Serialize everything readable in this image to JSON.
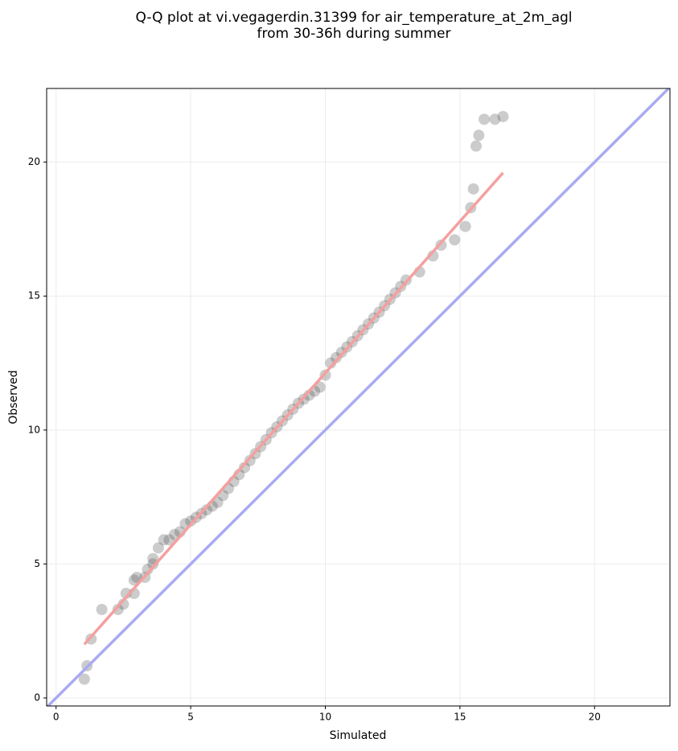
{
  "chart_data": {
    "type": "scatter",
    "title": [
      "Q-Q plot at vi.vegagerdin.31399 for air_temperature_at_2m_agl",
      "from 30-36h during summer"
    ],
    "xlabel": "Simulated",
    "ylabel": "Observed",
    "xlim": [
      -0.35,
      22.8
    ],
    "ylim": [
      -0.3,
      22.75
    ],
    "xticks": [
      0,
      5,
      10,
      15,
      20
    ],
    "yticks": [
      0,
      5,
      10,
      15,
      20
    ],
    "grid": true,
    "color": "#555555",
    "x": [
      1.05,
      1.15,
      1.3,
      1.7,
      2.3,
      2.5,
      2.6,
      2.9,
      2.9,
      3.0,
      3.3,
      3.4,
      3.6,
      3.6,
      3.8,
      4.0,
      4.2,
      4.4,
      4.6,
      4.8,
      5.0,
      5.2,
      5.4,
      5.6,
      5.8,
      6.0,
      6.2,
      6.4,
      6.6,
      6.8,
      7.0,
      7.2,
      7.4,
      7.6,
      7.8,
      8.0,
      8.2,
      8.4,
      8.6,
      8.8,
      9.0,
      9.2,
      9.4,
      9.6,
      9.8,
      10.0,
      10.2,
      10.4,
      10.6,
      10.8,
      11.0,
      11.2,
      11.4,
      11.6,
      11.8,
      12.0,
      12.2,
      12.4,
      12.6,
      12.8,
      13.0,
      13.5,
      14.0,
      14.3,
      14.8,
      15.2,
      15.4,
      15.5,
      15.6,
      15.7,
      15.9,
      16.3,
      16.6
    ],
    "y": [
      0.7,
      1.2,
      2.2,
      3.3,
      3.3,
      3.5,
      3.9,
      3.9,
      4.4,
      4.5,
      4.5,
      4.8,
      5.0,
      5.2,
      5.6,
      5.9,
      5.9,
      6.1,
      6.2,
      6.5,
      6.6,
      6.74,
      6.88,
      7.02,
      7.16,
      7.3,
      7.56,
      7.82,
      8.08,
      8.34,
      8.6,
      8.86,
      9.12,
      9.38,
      9.64,
      9.9,
      10.12,
      10.34,
      10.56,
      10.78,
      11.0,
      11.15,
      11.3,
      11.45,
      11.6,
      12.05,
      12.5,
      12.7,
      12.9,
      13.1,
      13.3,
      13.52,
      13.74,
      13.96,
      14.18,
      14.4,
      14.64,
      14.88,
      15.12,
      15.36,
      15.6,
      15.9,
      16.5,
      16.9,
      17.1,
      17.6,
      18.3,
      19.0,
      20.6,
      21.0,
      21.6,
      21.6,
      21.7
    ],
    "lines": [
      {
        "color": "#aaaaf2",
        "x": [
          -0.35,
          22.8
        ],
        "y": [
          -0.35,
          22.8
        ]
      },
      {
        "color": "#f4a0a0",
        "x": [
          1.05,
          16.6
        ],
        "y": [
          2.0,
          19.6
        ]
      }
    ]
  }
}
